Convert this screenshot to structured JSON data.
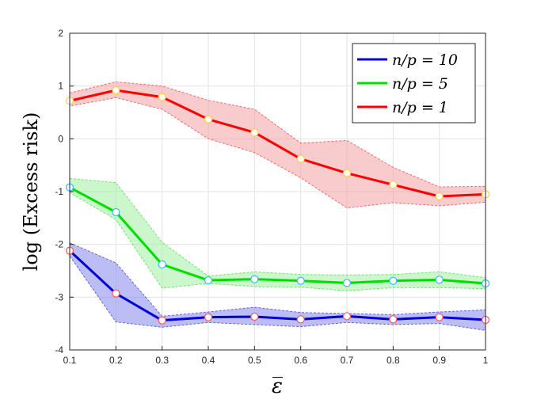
{
  "chart_data": {
    "type": "line",
    "xlabel": "ε̅",
    "ylabel": "log (Excess risk)",
    "xlim": [
      0.1,
      1.0
    ],
    "ylim": [
      -4,
      2
    ],
    "xticks": [
      0.1,
      0.2,
      0.3,
      0.4,
      0.5,
      0.6,
      0.7,
      0.8,
      0.9,
      1.0
    ],
    "xtick_labels": [
      "0.1",
      "0.2",
      "0.3",
      "0.4",
      "0.5",
      "0.6",
      "0.7",
      "0.8",
      "0.9",
      "1"
    ],
    "yticks": [
      -4,
      -3,
      -2,
      -1,
      0,
      1,
      2
    ],
    "ytick_labels": [
      "-4",
      "-3",
      "-2",
      "-1",
      "0",
      "1",
      "2"
    ],
    "grid": true,
    "legend_position": "top-right",
    "x": [
      0.1,
      0.2,
      0.3,
      0.4,
      0.5,
      0.6,
      0.7,
      0.8,
      0.9,
      1.0
    ],
    "series": [
      {
        "name": "n/p = 10",
        "color": "#0000dd",
        "band_color": "#7b7bee",
        "marker_color": "#ff5555",
        "values": [
          -2.12,
          -2.93,
          -3.44,
          -3.38,
          -3.37,
          -3.42,
          -3.36,
          -3.42,
          -3.38,
          -3.43
        ],
        "lower": [
          -2.22,
          -3.47,
          -3.57,
          -3.48,
          -3.52,
          -3.56,
          -3.48,
          -3.52,
          -3.5,
          -3.63
        ],
        "upper": [
          -1.97,
          -2.35,
          -3.36,
          -3.28,
          -3.19,
          -3.29,
          -3.31,
          -3.33,
          -3.28,
          -3.24
        ]
      },
      {
        "name": "n/p = 5",
        "color": "#00e000",
        "band_color": "#99ee99",
        "marker_color": "#33bbff",
        "values": [
          -0.92,
          -1.39,
          -2.38,
          -2.68,
          -2.66,
          -2.69,
          -2.73,
          -2.69,
          -2.67,
          -2.74
        ],
        "lower": [
          -1.02,
          -1.53,
          -2.83,
          -2.74,
          -2.8,
          -2.81,
          -2.88,
          -2.82,
          -2.82,
          -2.84
        ],
        "upper": [
          -0.75,
          -0.83,
          -1.96,
          -2.6,
          -2.52,
          -2.57,
          -2.58,
          -2.57,
          -2.52,
          -2.63
        ]
      },
      {
        "name": "n/p = 1",
        "color": "#ff0000",
        "band_color": "#f29a9a",
        "marker_color": "#ffcc44",
        "values": [
          0.72,
          0.92,
          0.79,
          0.37,
          0.12,
          -0.38,
          -0.65,
          -0.87,
          -1.09,
          -1.05
        ],
        "lower": [
          0.62,
          0.78,
          0.56,
          0.0,
          -0.26,
          -0.74,
          -1.31,
          -1.21,
          -1.27,
          -1.2
        ],
        "upper": [
          0.87,
          1.08,
          1.0,
          0.73,
          0.56,
          -0.08,
          -0.03,
          -0.54,
          -0.91,
          -0.9
        ]
      }
    ],
    "legend_order": [
      0,
      1,
      2
    ]
  }
}
